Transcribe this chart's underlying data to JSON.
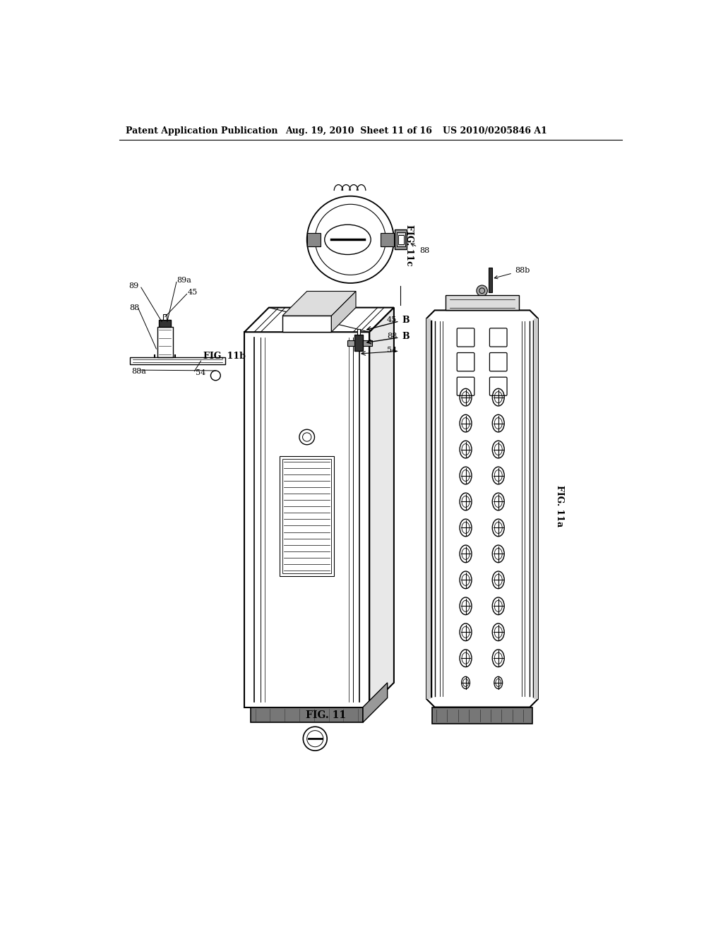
{
  "bg_color": "#ffffff",
  "header_left": "Patent Application Publication",
  "header_mid": "Aug. 19, 2010  Sheet 11 of 16",
  "header_right": "US 2010/0205846 A1",
  "fig11b_label": "FIG. 11b",
  "fig11_label": "FIG. 11",
  "fig11c_label": "FIG. 11c",
  "fig11a_label": "FIG. 11a",
  "gray_dark": "#333333",
  "gray_med": "#666666",
  "gray_light": "#aaaaaa",
  "gray_butt": "#777777"
}
